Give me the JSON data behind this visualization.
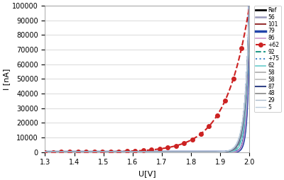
{
  "xlabel": "U[V]",
  "ylabel": "I [nA]",
  "xlim": [
    1.3,
    2.0
  ],
  "ylim": [
    0,
    100000
  ],
  "yticks": [
    0,
    10000,
    20000,
    30000,
    40000,
    50000,
    60000,
    70000,
    80000,
    90000,
    100000
  ],
  "xticks": [
    1.3,
    1.4,
    1.5,
    1.6,
    1.7,
    1.8,
    1.9,
    2.0
  ],
  "legend_labels": [
    "Ref",
    "56",
    "101",
    "79",
    "86",
    "+62",
    "92",
    "+75",
    "62",
    "58",
    "58",
    "87",
    "48",
    "29",
    "5"
  ],
  "legend_colors": [
    "#000000",
    "#9999bb",
    "#993333",
    "#2244aa",
    "#cc99cc",
    "#cc2222",
    "#229988",
    "#4488cc",
    "#66cccc",
    "#aaaaaa",
    "#bbbbbb",
    "#334488",
    "#888888",
    "#aabbcc",
    "#bbccdd"
  ],
  "legend_ls": [
    "-",
    "-",
    "-",
    "-",
    "-",
    "--",
    "--",
    ":",
    "-",
    "-",
    "-",
    "-",
    "-",
    "-",
    "-"
  ],
  "legend_lw": [
    2.0,
    1.8,
    1.5,
    2.5,
    1.2,
    1.5,
    1.5,
    1.5,
    1.2,
    1.2,
    1.2,
    1.5,
    1.2,
    1.0,
    1.0
  ],
  "legend_marker": [
    null,
    null,
    null,
    null,
    null,
    "o",
    null,
    null,
    null,
    null,
    null,
    null,
    null,
    null,
    null
  ],
  "curve_params": [
    {
      "vth": 1.5,
      "I0": 1.0,
      "nVt": 0.008,
      "clip_lo": 0
    },
    {
      "vth": 1.498,
      "I0": 1.0,
      "nVt": 0.0082,
      "clip_lo": 0
    },
    {
      "vth": 1.499,
      "I0": 1.0,
      "nVt": 0.0081,
      "clip_lo": 0
    },
    {
      "vth": 1.497,
      "I0": 1.0,
      "nVt": 0.0079,
      "clip_lo": 0
    },
    {
      "vth": 1.496,
      "I0": 1.0,
      "nVt": 0.0083,
      "clip_lo": 0
    },
    {
      "vth": 1.3,
      "I0": 0.0008,
      "nVt": 0.08,
      "clip_lo": 0
    },
    {
      "vth": 1.55,
      "I0": 1.0,
      "nVt": 0.012,
      "clip_lo": 0
    },
    {
      "vth": 1.59,
      "I0": 1.0,
      "nVt": 0.015,
      "clip_lo": 0
    },
    {
      "vth": 1.53,
      "I0": 1.0,
      "nVt": 0.011,
      "clip_lo": 0
    },
    {
      "vth": 1.56,
      "I0": 1.0,
      "nVt": 0.013,
      "clip_lo": 0
    },
    {
      "vth": 1.575,
      "I0": 1.0,
      "nVt": 0.0135,
      "clip_lo": 0
    },
    {
      "vth": 1.61,
      "I0": 1.0,
      "nVt": 0.014,
      "clip_lo": 0
    },
    {
      "vth": 1.63,
      "I0": 1.0,
      "nVt": 0.0145,
      "clip_lo": 0
    },
    {
      "vth": 1.66,
      "I0": 1.0,
      "nVt": 0.015,
      "clip_lo": 0
    },
    {
      "vth": 1.7,
      "I0": 1.0,
      "nVt": 0.0155,
      "clip_lo": 0
    }
  ]
}
